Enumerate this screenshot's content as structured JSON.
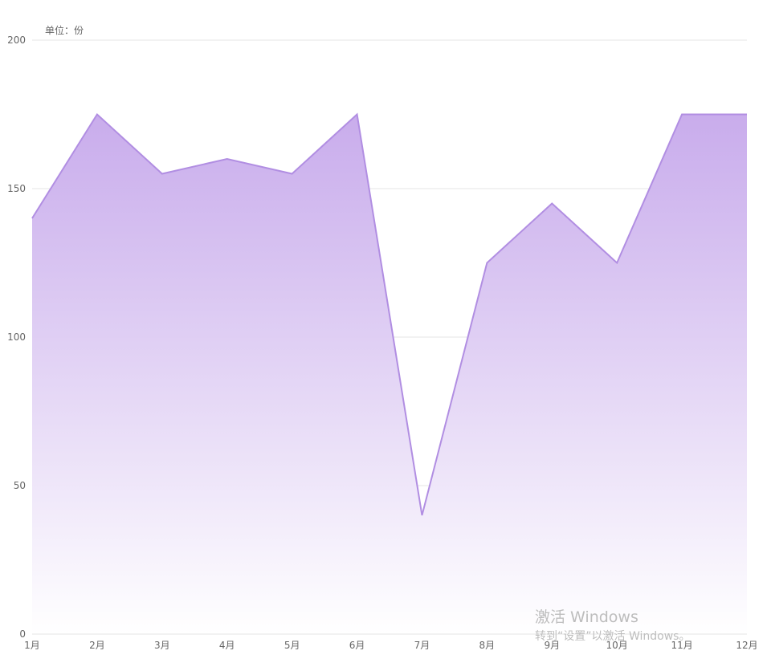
{
  "chart_data": {
    "type": "area",
    "unit_label": "单位：份",
    "categories": [
      "1月",
      "2月",
      "3月",
      "4月",
      "5月",
      "6月",
      "7月",
      "8月",
      "9月",
      "10月",
      "11月",
      "12月"
    ],
    "series": [
      {
        "values": [
          140,
          175,
          155,
          160,
          155,
          175,
          40,
          125,
          145,
          125,
          175,
          175
        ]
      }
    ],
    "ylim": [
      0,
      200
    ],
    "yticks": [
      0,
      50,
      100,
      150,
      200
    ],
    "grid": true,
    "colors": {
      "line": "#b18ee2",
      "fill_top": "#c6a8eb",
      "fill_bottom": "#ffffff",
      "grid": "#e6e6e6",
      "axis_text": "#666666"
    }
  },
  "watermark": {
    "title": "激活 Windows",
    "subtitle": "转到“设置”以激活 Windows。"
  }
}
